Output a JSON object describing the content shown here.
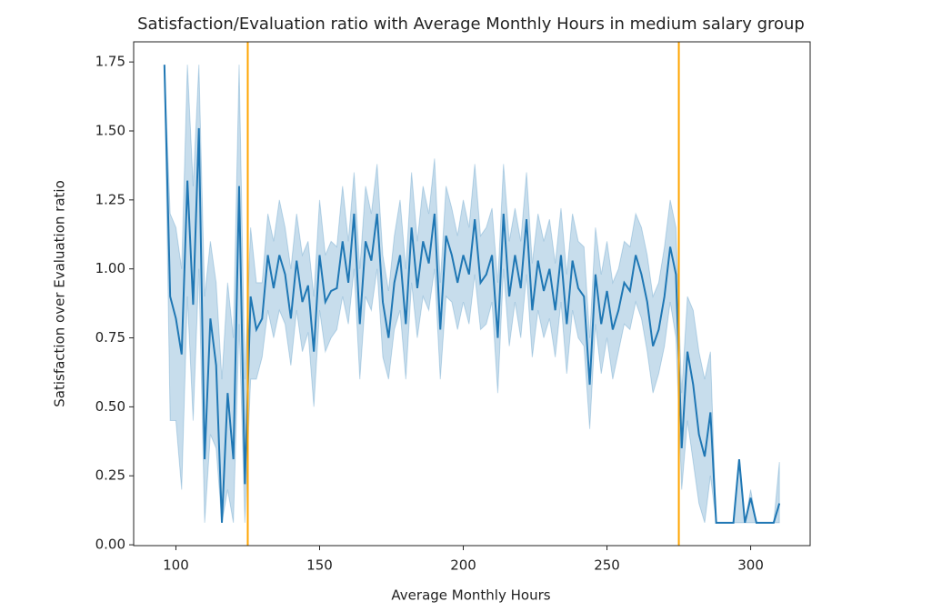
{
  "chart_data": {
    "type": "line",
    "title": "Satisfaction/Evaluation ratio with Average Monthly Hours in medium salary group",
    "x_label": "Average Monthly Hours",
    "y_label": "Satisfaction over Evaluation ratio",
    "x": [
      96,
      98,
      100,
      102,
      104,
      106,
      108,
      110,
      112,
      114,
      116,
      118,
      120,
      122,
      124,
      126,
      128,
      130,
      132,
      134,
      136,
      138,
      140,
      142,
      144,
      146,
      148,
      150,
      152,
      154,
      156,
      158,
      160,
      162,
      164,
      166,
      168,
      170,
      172,
      174,
      176,
      178,
      180,
      182,
      184,
      186,
      188,
      190,
      192,
      194,
      196,
      198,
      200,
      202,
      204,
      206,
      208,
      210,
      212,
      214,
      216,
      218,
      220,
      222,
      224,
      226,
      228,
      230,
      232,
      234,
      236,
      238,
      240,
      242,
      244,
      246,
      248,
      250,
      252,
      254,
      256,
      258,
      260,
      262,
      264,
      266,
      268,
      270,
      272,
      274,
      276,
      278,
      280,
      282,
      284,
      286,
      288,
      290,
      292,
      294,
      296,
      298,
      300,
      302,
      304,
      306,
      308,
      310
    ],
    "series": [
      {
        "color": "#1f77b4",
        "band_color": "#1f77b4",
        "values": [
          1.74,
          0.9,
          0.82,
          0.69,
          1.32,
          0.87,
          1.51,
          0.31,
          0.82,
          0.65,
          0.08,
          0.55,
          0.31,
          1.3,
          0.22,
          0.9,
          0.78,
          0.82,
          1.05,
          0.93,
          1.05,
          0.98,
          0.82,
          1.03,
          0.88,
          0.94,
          0.7,
          1.05,
          0.88,
          0.92,
          0.93,
          1.1,
          0.95,
          1.2,
          0.8,
          1.1,
          1.03,
          1.2,
          0.88,
          0.75,
          0.95,
          1.05,
          0.8,
          1.15,
          0.93,
          1.1,
          1.02,
          1.2,
          0.78,
          1.12,
          1.05,
          0.95,
          1.05,
          0.98,
          1.18,
          0.95,
          0.98,
          1.05,
          0.75,
          1.2,
          0.9,
          1.05,
          0.93,
          1.18,
          0.85,
          1.03,
          0.92,
          1.0,
          0.85,
          1.05,
          0.8,
          1.03,
          0.93,
          0.9,
          0.58,
          0.98,
          0.8,
          0.92,
          0.78,
          0.85,
          0.95,
          0.92,
          1.05,
          0.98,
          0.88,
          0.72,
          0.78,
          0.9,
          1.08,
          0.98,
          0.35,
          0.7,
          0.58,
          0.4,
          0.32,
          0.48,
          0.08,
          0.08,
          0.08,
          0.08,
          0.31,
          0.08,
          0.17,
          0.08,
          0.08,
          0.08,
          0.08,
          0.15
        ],
        "lower": [
          1.74,
          0.45,
          0.45,
          0.2,
          0.9,
          0.45,
          1.0,
          0.08,
          0.4,
          0.35,
          0.08,
          0.2,
          0.08,
          0.8,
          0.08,
          0.6,
          0.6,
          0.68,
          0.85,
          0.75,
          0.85,
          0.8,
          0.65,
          0.85,
          0.7,
          0.77,
          0.5,
          0.85,
          0.7,
          0.75,
          0.78,
          0.9,
          0.8,
          1.0,
          0.6,
          0.9,
          0.85,
          1.0,
          0.68,
          0.6,
          0.78,
          0.85,
          0.6,
          0.95,
          0.75,
          0.9,
          0.85,
          1.0,
          0.6,
          0.9,
          0.88,
          0.78,
          0.88,
          0.8,
          0.98,
          0.78,
          0.8,
          0.88,
          0.55,
          1.0,
          0.72,
          0.88,
          0.75,
          0.98,
          0.68,
          0.85,
          0.75,
          0.82,
          0.68,
          0.88,
          0.62,
          0.85,
          0.75,
          0.72,
          0.42,
          0.8,
          0.62,
          0.75,
          0.6,
          0.7,
          0.8,
          0.78,
          0.88,
          0.82,
          0.7,
          0.55,
          0.62,
          0.72,
          0.88,
          0.75,
          0.2,
          0.45,
          0.3,
          0.15,
          0.08,
          0.25,
          0.08,
          0.08,
          0.08,
          0.08,
          0.08,
          0.08,
          0.08,
          0.08,
          0.08,
          0.08,
          0.08,
          0.08
        ],
        "upper": [
          1.74,
          1.2,
          1.15,
          1.0,
          1.74,
          1.3,
          1.74,
          0.9,
          1.1,
          0.95,
          0.6,
          0.95,
          0.75,
          1.74,
          0.6,
          1.15,
          0.95,
          0.95,
          1.2,
          1.1,
          1.25,
          1.15,
          1.0,
          1.2,
          1.05,
          1.1,
          0.9,
          1.25,
          1.05,
          1.1,
          1.08,
          1.3,
          1.1,
          1.35,
          1.0,
          1.3,
          1.2,
          1.38,
          1.05,
          0.92,
          1.12,
          1.25,
          1.0,
          1.35,
          1.1,
          1.3,
          1.2,
          1.4,
          0.95,
          1.3,
          1.22,
          1.12,
          1.25,
          1.15,
          1.38,
          1.12,
          1.15,
          1.22,
          0.95,
          1.38,
          1.1,
          1.22,
          1.1,
          1.35,
          1.02,
          1.2,
          1.1,
          1.18,
          1.02,
          1.22,
          0.98,
          1.2,
          1.1,
          1.08,
          0.75,
          1.15,
          0.98,
          1.1,
          0.95,
          1.0,
          1.1,
          1.08,
          1.2,
          1.15,
          1.05,
          0.9,
          0.95,
          1.08,
          1.25,
          1.15,
          0.55,
          0.9,
          0.85,
          0.7,
          0.6,
          0.7,
          0.08,
          0.08,
          0.08,
          0.08,
          0.31,
          0.08,
          0.2,
          0.08,
          0.08,
          0.08,
          0.08,
          0.3
        ]
      }
    ],
    "vlines": [
      {
        "x": 125,
        "color": "orange"
      },
      {
        "x": 275,
        "color": "orange"
      }
    ],
    "xlim": [
      85.3,
      320.7
    ],
    "ylim": [
      -0.003,
      1.823
    ],
    "xticks": [
      100,
      150,
      200,
      250,
      300
    ],
    "yticks": [
      {
        "value": 0,
        "label": "0.00"
      },
      {
        "value": 0.25,
        "label": "0.25"
      },
      {
        "value": 0.5,
        "label": "0.50"
      },
      {
        "value": 0.75,
        "label": "0.75"
      },
      {
        "value": 1,
        "label": "1.00"
      },
      {
        "value": 1.25,
        "label": "1.25"
      },
      {
        "value": 1.5,
        "label": "1.50"
      },
      {
        "value": 1.75,
        "label": "1.75"
      }
    ]
  }
}
